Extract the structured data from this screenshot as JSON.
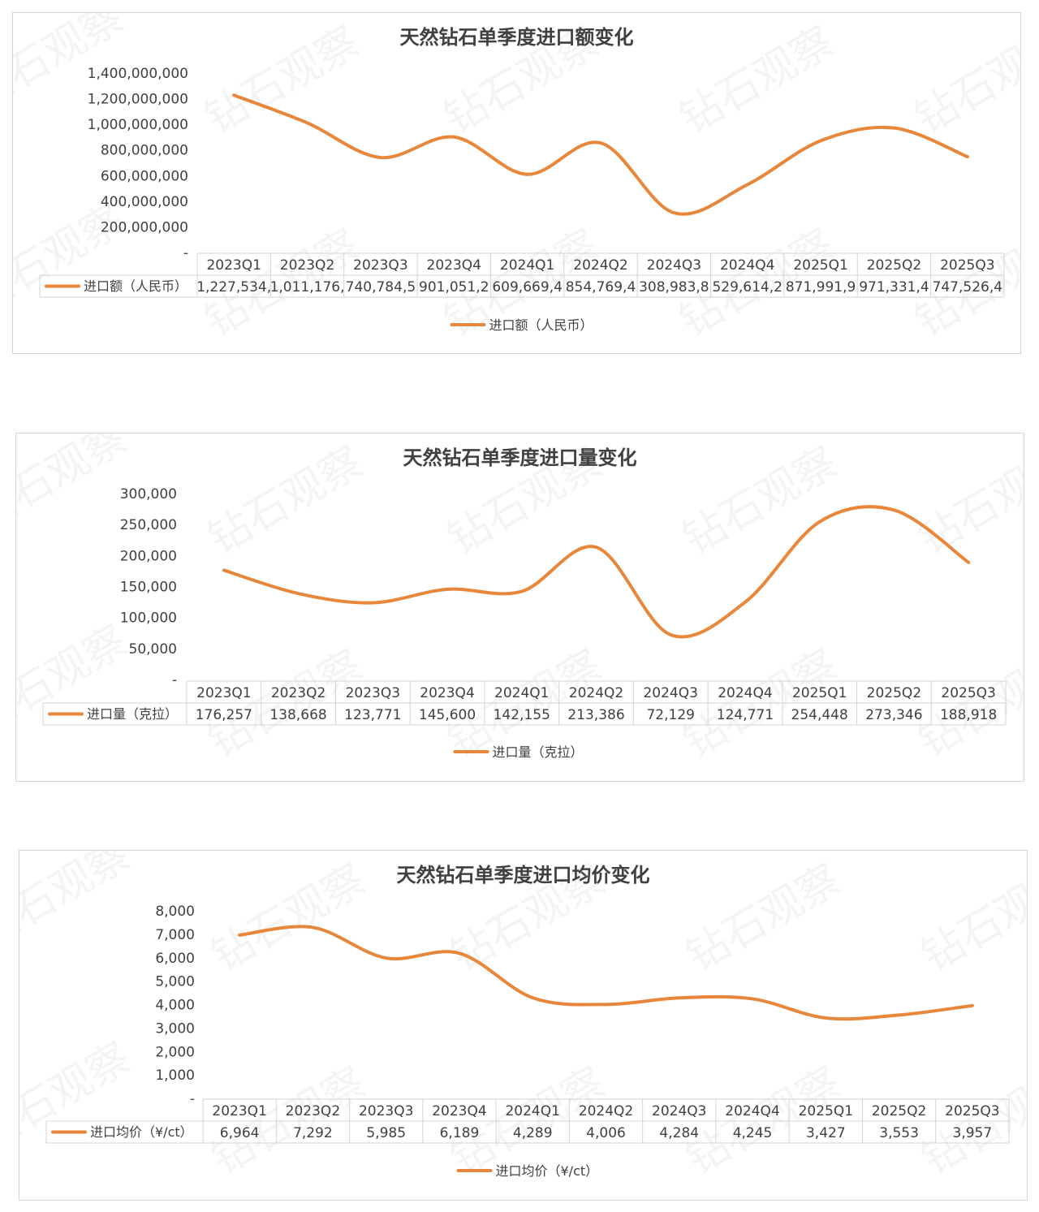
{
  "colors": {
    "series": "#E8863A"
  },
  "watermark": "钻石观察",
  "chart_data": [
    {
      "type": "line",
      "title": "天然钻石单季度进口额变化",
      "categories": [
        "2023Q1",
        "2023Q2",
        "2023Q3",
        "2023Q4",
        "2024Q1",
        "2024Q2",
        "2024Q3",
        "2024Q4",
        "2025Q1",
        "2025Q2",
        "2025Q3"
      ],
      "series": [
        {
          "name": "进口额（人民币）",
          "values": [
            1227534000,
            1011176000,
            740784500,
            901051200,
            609669400,
            854769400,
            308983800,
            529614200,
            871991900,
            971331400,
            747526400
          ],
          "table_labels": [
            "1,227,534,",
            "1,011,176,",
            "740,784,5",
            "901,051,2",
            "609,669,4",
            "854,769,4",
            "308,983,8",
            "529,614,2",
            "871,991,9",
            "971,331,4",
            "747,526,4"
          ]
        }
      ],
      "ylim": [
        0,
        1400000000
      ],
      "yticks": [
        "-",
        "200,000,000",
        "400,000,000",
        "600,000,000",
        "800,000,000",
        "1,000,000,000",
        "1,200,000,000",
        "1,400,000,000"
      ],
      "legend": "bottom-center",
      "grid": false,
      "smooth": true
    },
    {
      "type": "line",
      "title": "天然钻石单季度进口量变化",
      "categories": [
        "2023Q1",
        "2023Q2",
        "2023Q3",
        "2023Q4",
        "2024Q1",
        "2024Q2",
        "2024Q3",
        "2024Q4",
        "2025Q1",
        "2025Q2",
        "2025Q3"
      ],
      "series": [
        {
          "name": "进口量（克拉）",
          "values": [
            176257,
            138668,
            123771,
            145600,
            142155,
            213386,
            72129,
            124771,
            254448,
            273346,
            188918
          ],
          "table_labels": [
            "176,257",
            "138,668",
            "123,771",
            "145,600",
            "142,155",
            "213,386",
            "72,129",
            "124,771",
            "254,448",
            "273,346",
            "188,918"
          ]
        }
      ],
      "ylim": [
        0,
        300000
      ],
      "yticks": [
        "-",
        "50,000",
        "100,000",
        "150,000",
        "200,000",
        "250,000",
        "300,000"
      ],
      "legend": "bottom-center",
      "grid": false,
      "smooth": true
    },
    {
      "type": "line",
      "title": "天然钻石单季度进口均价变化",
      "categories": [
        "2023Q1",
        "2023Q2",
        "2023Q3",
        "2023Q4",
        "2024Q1",
        "2024Q2",
        "2024Q3",
        "2024Q4",
        "2025Q1",
        "2025Q2",
        "2025Q3"
      ],
      "series": [
        {
          "name": "进口均价（¥/ct）",
          "values": [
            6964,
            7292,
            5985,
            6189,
            4289,
            4006,
            4284,
            4245,
            3427,
            3553,
            3957
          ],
          "table_labels": [
            "6,964",
            "7,292",
            "5,985",
            "6,189",
            "4,289",
            "4,006",
            "4,284",
            "4,245",
            "3,427",
            "3,553",
            "3,957"
          ]
        }
      ],
      "ylim": [
        0,
        8000
      ],
      "yticks": [
        "-",
        "1,000",
        "2,000",
        "3,000",
        "4,000",
        "5,000",
        "6,000",
        "7,000",
        "8,000"
      ],
      "legend": "bottom-center",
      "grid": false,
      "smooth": true
    }
  ]
}
